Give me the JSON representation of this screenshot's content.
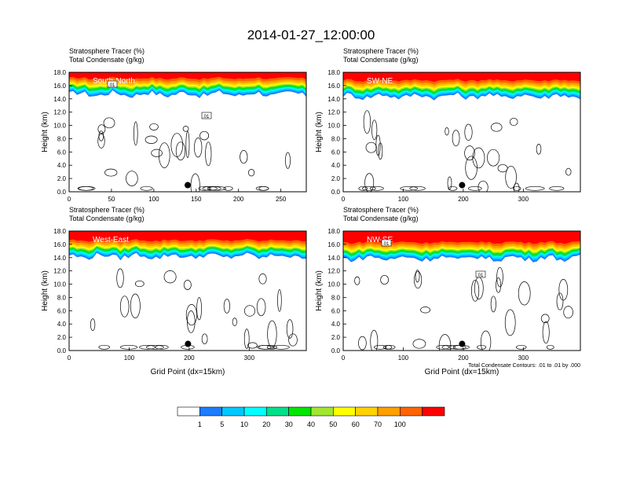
{
  "main_title": "2014-01-27_12:00:00",
  "colors": [
    "#ffffff",
    "#1e7cff",
    "#00c8ff",
    "#00ffff",
    "#00e08a",
    "#00e600",
    "#a0e632",
    "#ffff00",
    "#ffd200",
    "#ffa000",
    "#ff6400",
    "#ff0000"
  ],
  "chart_data": [
    {
      "type": "contour",
      "panel_label": "South-North",
      "title_line1": "Stratosphere Tracer   (%)",
      "title_line2": "Total Condensate   (g/kg)",
      "ylabel": "Height (km)",
      "xlabel": "",
      "xlim": [
        0,
        280
      ],
      "ylim": [
        0,
        18
      ],
      "xticks": [
        0,
        50,
        100,
        150,
        200,
        250
      ],
      "yticks": [
        0.0,
        2.0,
        4.0,
        6.0,
        8.0,
        10.0,
        12.0,
        14.0,
        16.0,
        18.0
      ],
      "tracer_base_km": 15.3,
      "contour_labels": [
        ".01",
        ".01"
      ],
      "marker_x": 140,
      "marker_y": 1.0,
      "footnote": ""
    },
    {
      "type": "contour",
      "panel_label": "SW-NE",
      "title_line1": "Stratosphere Tracer   (%)",
      "title_line2": "Total Condensate   (g/kg)",
      "ylabel": "Height (km)",
      "xlabel": "",
      "xlim": [
        0,
        395
      ],
      "ylim": [
        0,
        18
      ],
      "xticks": [
        0,
        100,
        200,
        300
      ],
      "yticks": [
        0.0,
        2.0,
        4.0,
        6.0,
        8.0,
        10.0,
        12.0,
        14.0,
        16.0,
        18.0
      ],
      "tracer_base_km": 15.0,
      "contour_labels": [],
      "marker_x": 198,
      "marker_y": 1.0,
      "footnote": ""
    },
    {
      "type": "contour",
      "panel_label": "West-East",
      "title_line1": "Stratosphere Tracer   (%)",
      "title_line2": "Total Condensate   (g/kg)",
      "ylabel": "Height (km)",
      "xlabel": "Grid Point (dx=15km)",
      "xlim": [
        0,
        395
      ],
      "ylim": [
        0,
        18
      ],
      "xticks": [
        0,
        100,
        200,
        300
      ],
      "yticks": [
        0.0,
        2.0,
        4.0,
        6.0,
        8.0,
        10.0,
        12.0,
        14.0,
        16.0,
        18.0
      ],
      "tracer_base_km": 14.8,
      "contour_labels": [],
      "marker_x": 198,
      "marker_y": 1.0,
      "footnote": ""
    },
    {
      "type": "contour",
      "panel_label": "NW-SE",
      "title_line1": "Stratosphere Tracer   (%)",
      "title_line2": "Total Condensate   (g/kg)",
      "ylabel": "Height (km)",
      "xlabel": "Grid Point (dx=15km)",
      "xlim": [
        0,
        395
      ],
      "ylim": [
        0,
        18
      ],
      "xticks": [
        0,
        100,
        200,
        300
      ],
      "yticks": [
        0.0,
        2.0,
        4.0,
        6.0,
        8.0,
        10.0,
        12.0,
        14.0,
        16.0,
        18.0
      ],
      "tracer_base_km": 14.5,
      "contour_labels": [
        ".01",
        ".01"
      ],
      "marker_x": 198,
      "marker_y": 1.0,
      "footnote": "Total Condensate Contours: .01 to .01 by .000"
    }
  ],
  "colorbar": {
    "labels": [
      "1",
      "5",
      "10",
      "20",
      "30",
      "40",
      "50",
      "60",
      "70",
      "100"
    ]
  }
}
